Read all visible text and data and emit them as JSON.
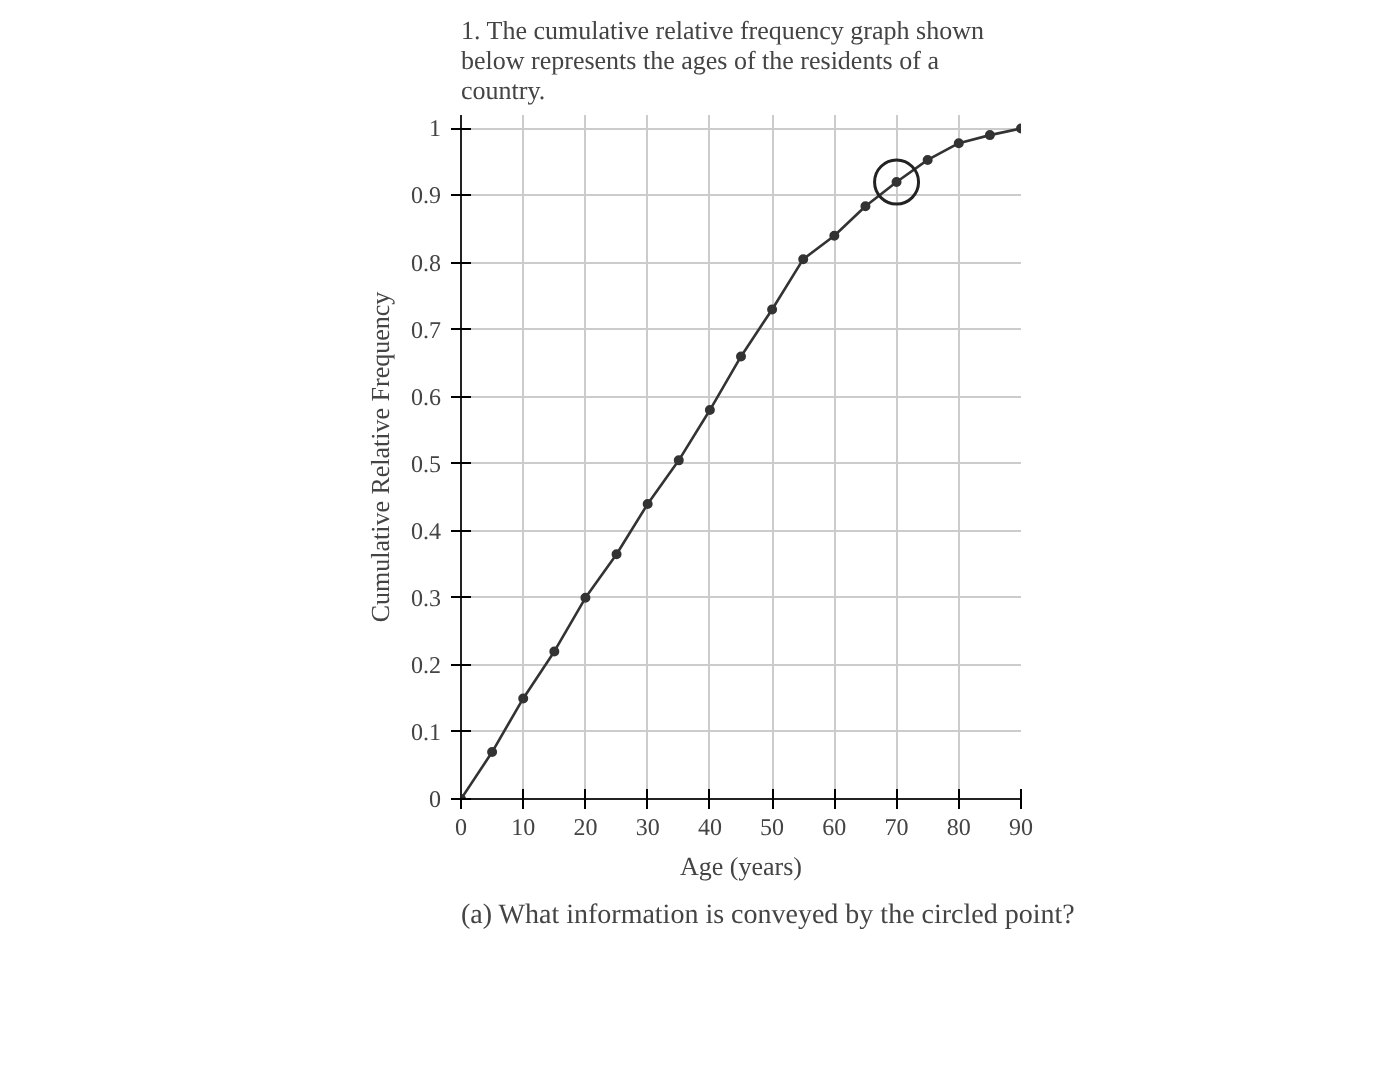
{
  "chart_data": {
    "type": "line",
    "title": "1. The cumulative relative frequency graph shown below represents the ages of the residents of a country.",
    "xlabel": "Age (years)",
    "ylabel": "Cumulative Relative Frequency",
    "x": [
      0,
      5,
      10,
      15,
      20,
      25,
      30,
      35,
      40,
      45,
      50,
      55,
      60,
      65,
      70,
      75,
      80,
      85,
      90
    ],
    "series": [
      {
        "color": "#333333",
        "values": [
          0,
          0.07,
          0.15,
          0.22,
          0.3,
          0.365,
          0.44,
          0.505,
          0.58,
          0.66,
          0.73,
          0.805,
          0.84,
          0.884,
          0.92,
          0.953,
          0.978,
          0.99,
          1.0
        ]
      },
      {
        "type": "scatter",
        "color": "#222222",
        "x": [
          70
        ],
        "values": [
          0.92
        ]
      }
    ],
    "xlim": [
      0,
      90
    ],
    "ylim": [
      0,
      1.02
    ],
    "xticks": [
      0,
      10,
      20,
      30,
      40,
      50,
      60,
      70,
      80,
      90
    ],
    "yticks": [
      0,
      0.1,
      0.2,
      0.3,
      0.4,
      0.5,
      0.6,
      0.7,
      0.8,
      0.9,
      1
    ],
    "grid": true,
    "marker": "circle",
    "line_style": "solid",
    "annotations": [
      "(a) What information is conveyed by the circled point?"
    ]
  }
}
